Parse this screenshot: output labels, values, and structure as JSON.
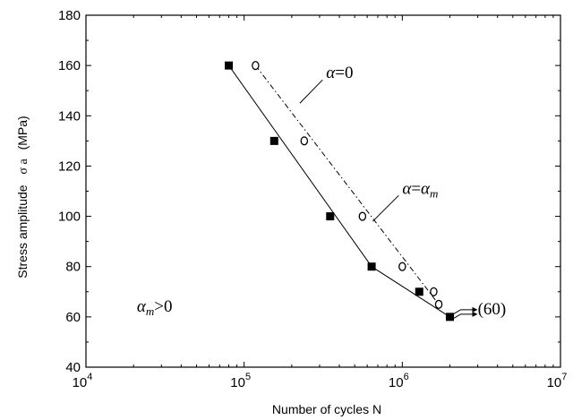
{
  "chart_data": {
    "type": "scatter",
    "title": "",
    "xlabel": "Number of cycles   N",
    "ylabel_text": "Stress amplitude",
    "ylabel_symbol": "σ a",
    "ylabel_unit": "(MPa)",
    "xscale": "log",
    "xlim": [
      10000,
      10000000
    ],
    "ylim": [
      40,
      180
    ],
    "y_ticks": [
      40,
      60,
      80,
      100,
      120,
      140,
      160,
      180
    ],
    "x_ticks": [
      {
        "base": "10",
        "exp": "4"
      },
      {
        "base": "10",
        "exp": "5"
      },
      {
        "base": "10",
        "exp": "6"
      },
      {
        "base": "10",
        "exp": "7"
      }
    ],
    "grid": false,
    "legend": "none",
    "series": [
      {
        "marker": "filled-square",
        "points": [
          {
            "x": 80000,
            "y": 160
          },
          {
            "x": 155000,
            "y": 130
          },
          {
            "x": 350000,
            "y": 100
          },
          {
            "x": 640000,
            "y": 80
          },
          {
            "x": 1280000,
            "y": 70
          },
          {
            "x": 2000000,
            "y": 60
          }
        ],
        "fit_line": [
          {
            "x": 80000,
            "y": 160
          },
          {
            "x": 640000,
            "y": 80
          },
          {
            "x": 2000000,
            "y": 60
          }
        ],
        "line_style": "solid"
      },
      {
        "marker": "open-circle",
        "points": [
          {
            "x": 118000,
            "y": 160
          },
          {
            "x": 240000,
            "y": 130
          },
          {
            "x": 560000,
            "y": 100
          },
          {
            "x": 1000000,
            "y": 80
          },
          {
            "x": 1580000,
            "y": 70
          },
          {
            "x": 1700000,
            "y": 65
          }
        ],
        "fit_line": [
          {
            "x": 118000,
            "y": 160
          },
          {
            "x": 1700000,
            "y": 65
          }
        ],
        "line_style": "dash-dot"
      }
    ],
    "runouts": [
      {
        "x": 2000000,
        "y": 60,
        "arrows": 2
      }
    ],
    "annotations": [
      {
        "id": "alpha0",
        "text_it": "α",
        "text": "=0",
        "x": 330000,
        "y": 155,
        "pointer_to": {
          "x": 225000,
          "y": 145
        }
      },
      {
        "id": "alpham",
        "text_it": "α",
        "text": "=",
        "text_it2": "α",
        "sub": "m",
        "x": 1000000,
        "y": 109,
        "pointer_to": {
          "x": 650000,
          "y": 98
        }
      },
      {
        "id": "am",
        "text_it": "α",
        "sub": "m",
        "text": ">0",
        "x": 21000,
        "y": 62
      },
      {
        "id": "runout",
        "text": "(60)",
        "x": 3000000,
        "y": 61
      }
    ]
  }
}
